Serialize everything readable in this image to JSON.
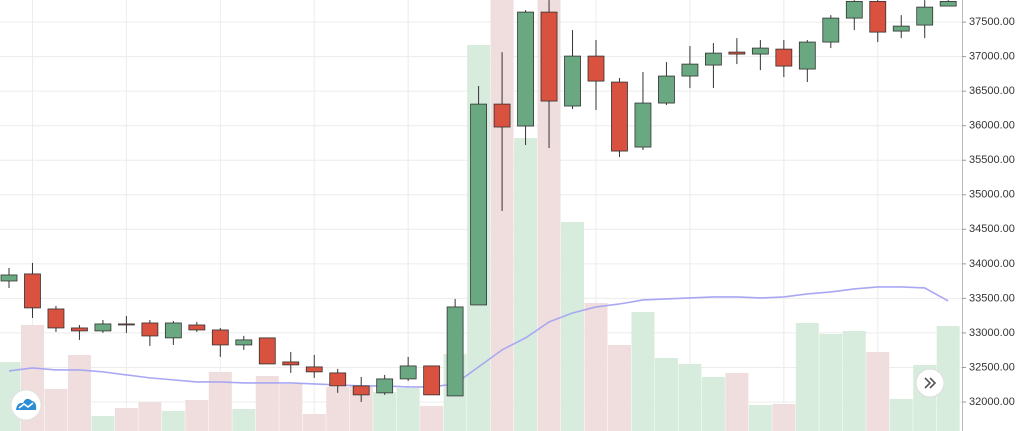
{
  "chart_data": {
    "type": "candlestick",
    "ylim": [
      31580,
      37820
    ],
    "yticks": [
      {
        "value": 32000,
        "label": "32000.00"
      },
      {
        "value": 32500,
        "label": "32500.00"
      },
      {
        "value": 33000,
        "label": "33000.00"
      },
      {
        "value": 33500,
        "label": "33500.00"
      },
      {
        "value": 34000,
        "label": "34000.00"
      },
      {
        "value": 34500,
        "label": "34500.00"
      },
      {
        "value": 35000,
        "label": "35000.00"
      },
      {
        "value": 35500,
        "label": "35500.00"
      },
      {
        "value": 36000,
        "label": "36000.00"
      },
      {
        "value": 36500,
        "label": "36500.00"
      },
      {
        "value": 37000,
        "label": "37000.00"
      },
      {
        "value": 37500,
        "label": "37500.00"
      }
    ],
    "grid": true,
    "up_color": "#6aa882",
    "down_color": "#d9513f",
    "volume_up_color": "#d8ecdd",
    "volume_down_color": "#efdedd",
    "ma_color": "#a9a7f2",
    "open": [
      33752,
      33854,
      33347,
      33072,
      33029,
      33130,
      33144,
      32928,
      33115,
      33043,
      32826,
      32928,
      32580,
      32508,
      32421,
      32233,
      32132,
      32334,
      32522,
      32088,
      33405,
      36313,
      35995,
      37645,
      36285,
      37008,
      36632,
      35691,
      36328,
      36719,
      36878,
      37066,
      37037,
      37109,
      36820,
      37211,
      37558,
      37800,
      37370,
      37457,
      37732
    ],
    "high": [
      33940,
      34013,
      33391,
      33115,
      33188,
      33246,
      33188,
      33173,
      33159,
      33072,
      32957,
      32928,
      32725,
      32682,
      32479,
      32363,
      32392,
      32653,
      32522,
      33492,
      36574,
      37066,
      37674,
      37818,
      37384,
      37240,
      36690,
      36777,
      36921,
      37153,
      37196,
      37268,
      37240,
      37240,
      37240,
      37601,
      37818,
      37818,
      37601,
      37818,
      37818
    ],
    "low": [
      33650,
      33217,
      33014,
      32899,
      33000,
      33000,
      32812,
      32826,
      33014,
      32653,
      32754,
      32551,
      32421,
      32349,
      32132,
      32001,
      32103,
      32305,
      32103,
      32088,
      33405,
      34765,
      35720,
      35677,
      36241,
      36227,
      35547,
      35648,
      36299,
      36545,
      36545,
      36892,
      36805,
      36704,
      36632,
      37124,
      37384,
      37211,
      37268,
      37268,
      37732
    ],
    "close": [
      33839,
      33362,
      33072,
      33029,
      33130,
      33115,
      32956,
      33144,
      33043,
      32826,
      32899,
      32551,
      32537,
      32436,
      32233,
      32103,
      32334,
      32522,
      32103,
      33376,
      36313,
      35981,
      37645,
      36357,
      37008,
      36646,
      35633,
      36328,
      36719,
      36892,
      37051,
      37037,
      37124,
      36863,
      37211,
      37558,
      37800,
      37355,
      37442,
      37717,
      37800
    ],
    "vlim": [
      0,
      431
    ],
    "volume": [
      69,
      106,
      42,
      76,
      15,
      23,
      29,
      20,
      31,
      59,
      22,
      55,
      47,
      17,
      44,
      45,
      39,
      43,
      25,
      77,
      386,
      431,
      293,
      431,
      209,
      128,
      86,
      119,
      73,
      67,
      54,
      58,
      26,
      27,
      108,
      97,
      100,
      79,
      32,
      66,
      105
    ],
    "ma": [
      32450,
      32493,
      32464,
      32464,
      32436,
      32392,
      32349,
      32320,
      32291,
      32291,
      32276,
      32276,
      32276,
      32262,
      32247,
      32233,
      32233,
      32218,
      32218,
      32262,
      32508,
      32754,
      32928,
      33159,
      33289,
      33376,
      33419,
      33477,
      33492,
      33506,
      33521,
      33521,
      33506,
      33521,
      33564,
      33593,
      33637,
      33666,
      33666,
      33651,
      33463
    ]
  }
}
